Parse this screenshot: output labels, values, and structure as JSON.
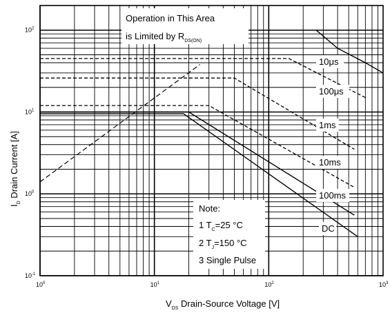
{
  "chart_data": {
    "type": "line",
    "x_scale": "log",
    "y_scale": "log",
    "xlim": [
      1,
      1000
    ],
    "ylim": [
      0.1,
      200
    ],
    "grid": true,
    "xticks": [
      {
        "value": 1,
        "base": "10",
        "exp": "0"
      },
      {
        "value": 10,
        "base": "10",
        "exp": "1"
      },
      {
        "value": 100,
        "base": "10",
        "exp": "2"
      },
      {
        "value": 1000,
        "base": "10",
        "exp": "3"
      }
    ],
    "yticks": [
      {
        "value": 0.1,
        "base": "10",
        "exp": "-1"
      },
      {
        "value": 1,
        "base": "10",
        "exp": "0"
      },
      {
        "value": 10,
        "base": "10",
        "exp": "1"
      },
      {
        "value": 100,
        "base": "10",
        "exp": "2"
      }
    ],
    "xlabel": {
      "main": "Drain-Source Voltage [V]",
      "prefix": "V",
      "sub": "DS"
    },
    "ylabel": {
      "main": "Drain Current [A]",
      "prefix": "I",
      "sub": "D"
    },
    "annotation": {
      "line1": "Operation in This Area",
      "line2": "is Limited by R",
      "line2_sub": "DS(ON)"
    },
    "note": {
      "title": "Note:",
      "line1_pre": "1 T",
      "line1_sub": "C",
      "line1_post": "=25 °C",
      "line2_pre": "2 T",
      "line2_sub": "J",
      "line2_post": "=150 °C",
      "line3": "3 Single Pulse"
    },
    "series": [
      {
        "name": "10μs",
        "style": "solid",
        "points": [
          [
            1,
            100
          ],
          [
            260,
            100
          ],
          [
            400,
            60
          ],
          [
            700,
            40
          ],
          [
            1000,
            30
          ]
        ]
      },
      {
        "name": "100μs",
        "style": "dashed",
        "points": [
          [
            1,
            45
          ],
          [
            150,
            45
          ],
          [
            700,
            15
          ]
        ]
      },
      {
        "name": "1ms",
        "style": "dashed",
        "points": [
          [
            1,
            26
          ],
          [
            50,
            26
          ],
          [
            560,
            3.5
          ]
        ]
      },
      {
        "name": "10ms",
        "style": "dashed",
        "points": [
          [
            1,
            12
          ],
          [
            30,
            12
          ],
          [
            560,
            1.2
          ]
        ]
      },
      {
        "name": "100ms",
        "style": "solid",
        "points": [
          [
            1,
            10
          ],
          [
            20,
            10
          ],
          [
            560,
            0.55
          ]
        ]
      },
      {
        "name": "DC",
        "style": "solid",
        "points": [
          [
            1,
            9.5
          ],
          [
            18,
            9.5
          ],
          [
            600,
            0.3
          ]
        ]
      },
      {
        "name": "",
        "style": "rdson",
        "points": [
          [
            1,
            1.4
          ],
          [
            25,
            38
          ]
        ]
      }
    ]
  }
}
